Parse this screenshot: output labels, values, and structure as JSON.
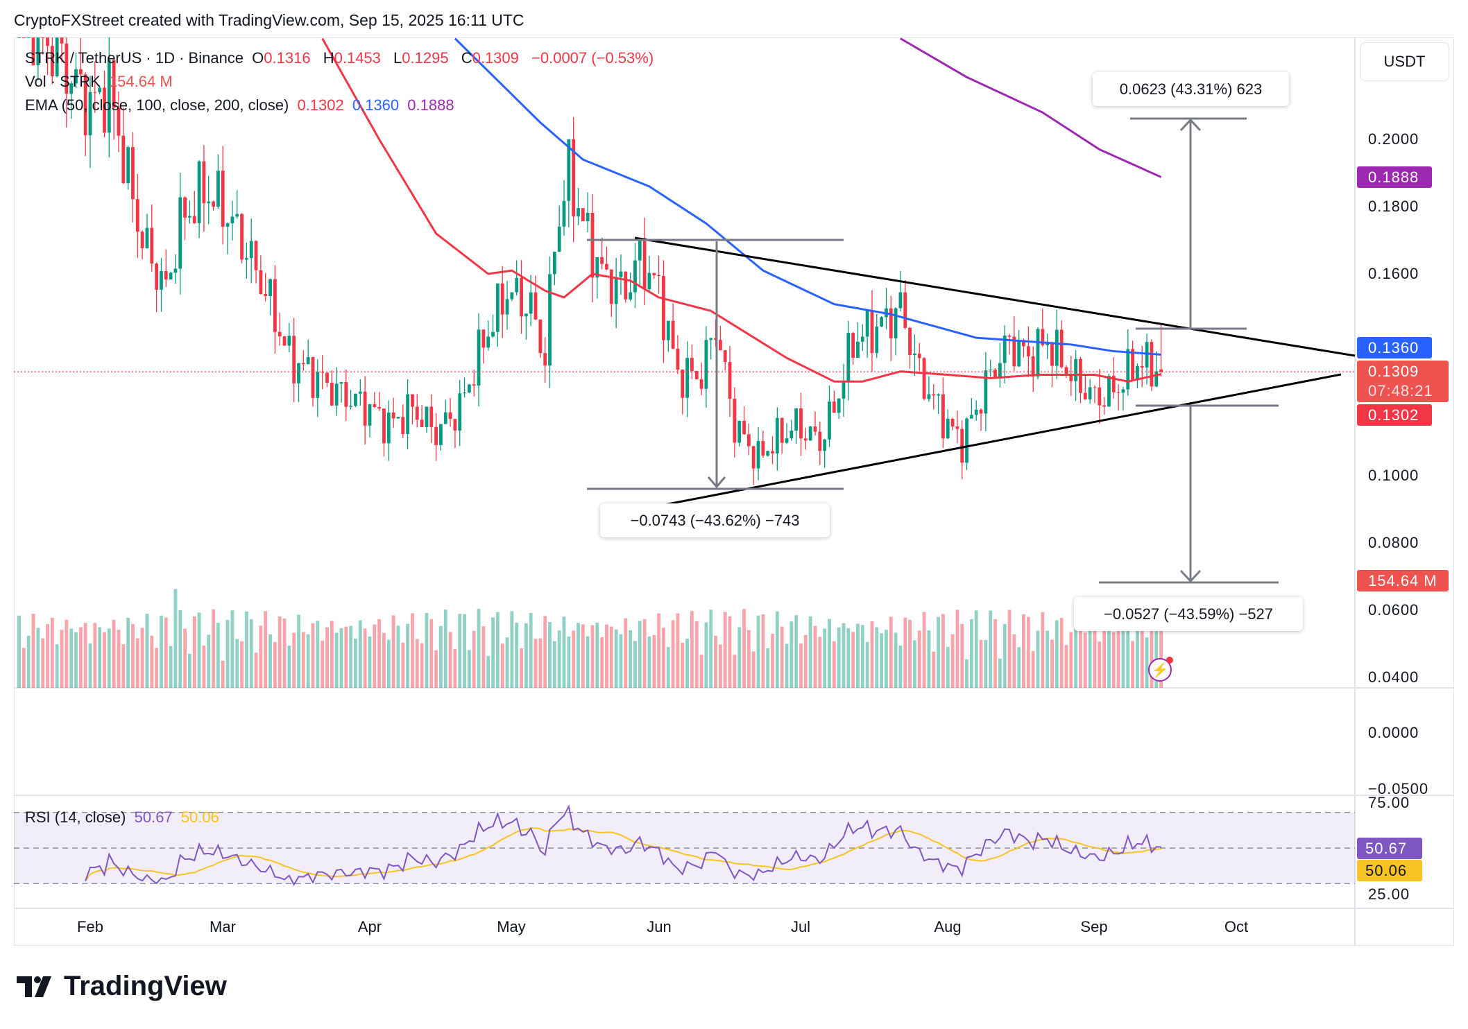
{
  "credit": "CryptoFXStreet created with TradingView.com, Sep 15, 2025 16:11 UTC",
  "legend": {
    "symbol": "STRK / TetherUS · 1D · Binance",
    "o_label": "O",
    "o": "0.1316",
    "h_label": "H",
    "h": "0.1453",
    "l_label": "L",
    "l": "0.1295",
    "c_label": "C",
    "c": "0.1309",
    "change": "−0.0007 (−0.53%)",
    "vol_label": "Vol · STRK",
    "vol": "154.64 M",
    "ema_label": "EMA (50, close, 100, close, 200, close)",
    "ema50": "0.1302",
    "ema100": "0.1360",
    "ema200": "0.1888"
  },
  "currency_button": "USDT",
  "price_axis": [
    "0.2000",
    "0.1800",
    "0.1600",
    "0.1000",
    "0.0800",
    "0.0600",
    "0.0400"
  ],
  "volume_axis": [
    "0.0000",
    "−0.0500"
  ],
  "rsi_axis": [
    "75.00",
    "25.00"
  ],
  "tags": {
    "ema200": "0.1888",
    "ema100": "0.1360",
    "price": "0.1309",
    "countdown": "07:48:21",
    "ema50": "0.1302",
    "volume": "154.64 M",
    "rsi": "50.67",
    "rsi_ma": "50.06"
  },
  "rsi_legend": {
    "label": "RSI (14, close)",
    "rsi": "50.67",
    "ma": "50.06"
  },
  "measures": {
    "up_target": "0.0623 (43.31%) 623",
    "pattern_height": "−0.0743 (−43.62%) −743",
    "down_target": "−0.0527 (−43.59%) −527"
  },
  "logo_text": "TradingView",
  "colors": {
    "up": "#089981",
    "down": "#F23645",
    "ema50": "#F23645",
    "ema100": "#2962FF",
    "ema200": "#9C27B0",
    "rsi": "#7E57C2",
    "rsi_ma": "#F7C325"
  },
  "chart_data": {
    "type": "candlestick",
    "interval": "1D",
    "x_ticks": [
      "Feb",
      "Mar",
      "Apr",
      "May",
      "Jun",
      "Jul",
      "Aug",
      "Sep",
      "Oct"
    ],
    "ylim": [
      0.04,
      0.23
    ],
    "close_path": [
      [
        "2025-01-17",
        0.24
      ],
      [
        "2025-01-25",
        0.225
      ],
      [
        "2025-02-01",
        0.21
      ],
      [
        "2025-02-05",
        0.215
      ],
      [
        "2025-02-08",
        0.195
      ],
      [
        "2025-02-12",
        0.17
      ],
      [
        "2025-02-17",
        0.155
      ],
      [
        "2025-02-20",
        0.175
      ],
      [
        "2025-02-25",
        0.185
      ],
      [
        "2025-03-01",
        0.18
      ],
      [
        "2025-03-05",
        0.17
      ],
      [
        "2025-03-10",
        0.155
      ],
      [
        "2025-03-15",
        0.135
      ],
      [
        "2025-03-20",
        0.13
      ],
      [
        "2025-03-25",
        0.125
      ],
      [
        "2025-04-01",
        0.12
      ],
      [
        "2025-04-05",
        0.115
      ],
      [
        "2025-04-10",
        0.12
      ],
      [
        "2025-04-15",
        0.113
      ],
      [
        "2025-04-20",
        0.12
      ],
      [
        "2025-04-25",
        0.14
      ],
      [
        "2025-04-30",
        0.155
      ],
      [
        "2025-05-05",
        0.15
      ],
      [
        "2025-05-08",
        0.135
      ],
      [
        "2025-05-10",
        0.17
      ],
      [
        "2025-05-13",
        0.19
      ],
      [
        "2025-05-16",
        0.175
      ],
      [
        "2025-05-20",
        0.16
      ],
      [
        "2025-05-25",
        0.155
      ],
      [
        "2025-05-28",
        0.165
      ],
      [
        "2025-06-01",
        0.155
      ],
      [
        "2025-06-05",
        0.13
      ],
      [
        "2025-06-10",
        0.13
      ],
      [
        "2025-06-13",
        0.145
      ],
      [
        "2025-06-17",
        0.115
      ],
      [
        "2025-06-22",
        0.105
      ],
      [
        "2025-06-25",
        0.11
      ],
      [
        "2025-06-30",
        0.115
      ],
      [
        "2025-07-05",
        0.11
      ],
      [
        "2025-07-08",
        0.12
      ],
      [
        "2025-07-12",
        0.14
      ],
      [
        "2025-07-18",
        0.145
      ],
      [
        "2025-07-22",
        0.15
      ],
      [
        "2025-07-26",
        0.13
      ],
      [
        "2025-08-01",
        0.115
      ],
      [
        "2025-08-04",
        0.11
      ],
      [
        "2025-08-10",
        0.13
      ],
      [
        "2025-08-14",
        0.14
      ],
      [
        "2025-08-18",
        0.135
      ],
      [
        "2025-08-22",
        0.14
      ],
      [
        "2025-08-27",
        0.13
      ],
      [
        "2025-09-01",
        0.123
      ],
      [
        "2025-09-05",
        0.125
      ],
      [
        "2025-09-10",
        0.134
      ],
      [
        "2025-09-14",
        0.1316
      ]
    ],
    "last_candle": {
      "date": "2025-09-15",
      "open": 0.1316,
      "high": 0.1453,
      "low": 0.1295,
      "close": 0.1309,
      "volume": "154.64M"
    },
    "ema50": [
      [
        "2025-03-22",
        0.23
      ],
      [
        "2025-04-03",
        0.2
      ],
      [
        "2025-04-15",
        0.172
      ],
      [
        "2025-04-26",
        0.16
      ],
      [
        "2025-05-01",
        0.161
      ],
      [
        "2025-05-08",
        0.155
      ],
      [
        "2025-05-12",
        0.153
      ],
      [
        "2025-05-18",
        0.16
      ],
      [
        "2025-05-26",
        0.158
      ],
      [
        "2025-06-01",
        0.153
      ],
      [
        "2025-06-12",
        0.149
      ],
      [
        "2025-06-20",
        0.142
      ],
      [
        "2025-06-28",
        0.135
      ],
      [
        "2025-07-08",
        0.128
      ],
      [
        "2025-07-14",
        0.128
      ],
      [
        "2025-07-22",
        0.131
      ],
      [
        "2025-08-01",
        0.13
      ],
      [
        "2025-08-10",
        0.129
      ],
      [
        "2025-08-20",
        0.13
      ],
      [
        "2025-09-01",
        0.13
      ],
      [
        "2025-09-08",
        0.128
      ],
      [
        "2025-09-15",
        0.1302
      ]
    ],
    "ema100": [
      [
        "2025-04-19",
        0.23
      ],
      [
        "2025-05-07",
        0.205
      ],
      [
        "2025-05-16",
        0.194
      ],
      [
        "2025-05-30",
        0.186
      ],
      [
        "2025-06-11",
        0.175
      ],
      [
        "2025-06-23",
        0.161
      ],
      [
        "2025-07-08",
        0.151
      ],
      [
        "2025-07-20",
        0.148
      ],
      [
        "2025-08-07",
        0.141
      ],
      [
        "2025-08-27",
        0.139
      ],
      [
        "2025-09-05",
        0.137
      ],
      [
        "2025-09-15",
        0.136
      ]
    ],
    "ema200": [
      [
        "2025-07-22",
        0.23
      ],
      [
        "2025-08-05",
        0.2185
      ],
      [
        "2025-08-21",
        0.208
      ],
      [
        "2025-09-02",
        0.197
      ],
      [
        "2025-09-15",
        0.1888
      ]
    ],
    "rsi_levels": [
      70,
      50,
      30
    ]
  }
}
